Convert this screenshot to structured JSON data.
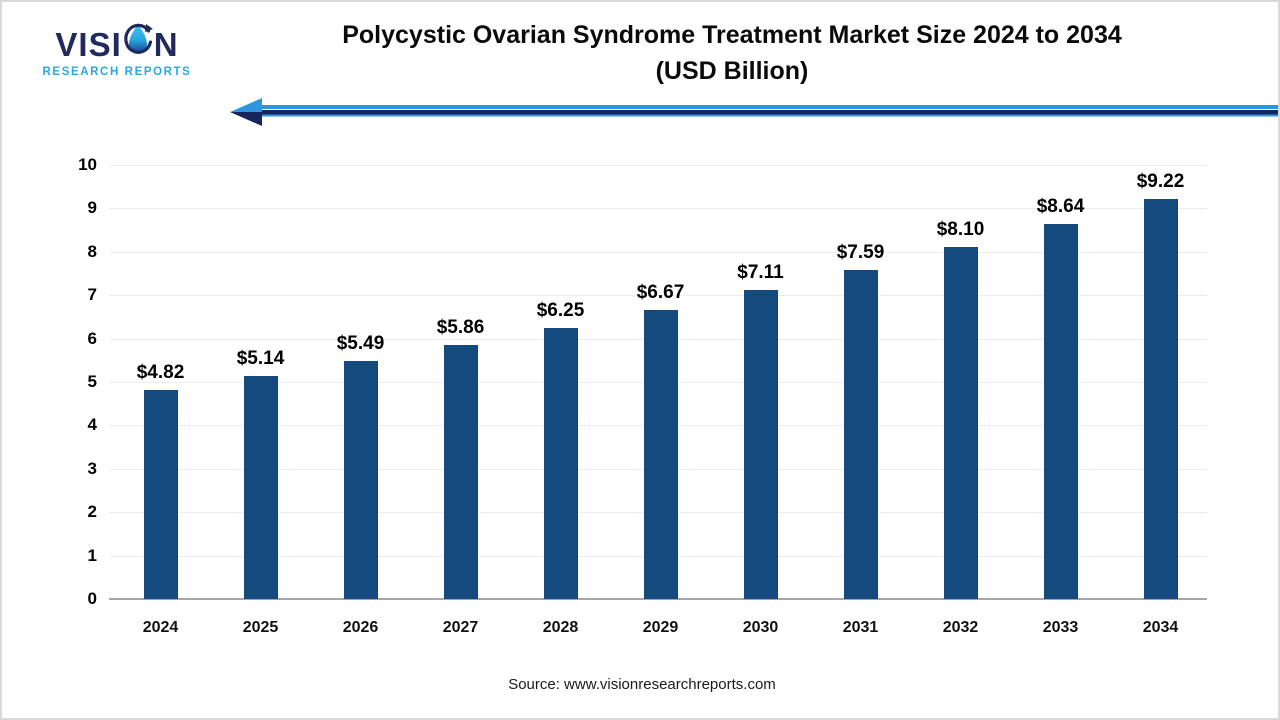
{
  "logo": {
    "brand_prefix": "VISI",
    "brand_suffix": "N",
    "subtitle": "RESEARCH REPORTS"
  },
  "header": {
    "title_line1": "Polycystic Ovarian Syndrome Treatment Market Size 2024 to 2034",
    "title_line2": "(USD Billion)"
  },
  "chart_data": {
    "type": "bar",
    "title": "Polycystic Ovarian Syndrome Treatment Market Size 2024 to 2034 (USD Billion)",
    "categories": [
      "2024",
      "2025",
      "2026",
      "2027",
      "2028",
      "2029",
      "2030",
      "2031",
      "2032",
      "2033",
      "2034"
    ],
    "values": [
      4.82,
      5.14,
      5.49,
      5.86,
      6.25,
      6.67,
      7.11,
      7.59,
      8.1,
      8.64,
      9.22
    ],
    "value_labels": [
      "$4.82",
      "$5.14",
      "$5.49",
      "$5.86",
      "$6.25",
      "$6.67",
      "$7.11",
      "$7.59",
      "$8.10",
      "$8.64",
      "$9.22"
    ],
    "xlabel": "",
    "ylabel": "",
    "y_ticks": [
      0,
      1,
      2,
      3,
      4,
      5,
      6,
      7,
      8,
      9,
      10
    ],
    "ylim": [
      0,
      10
    ],
    "grid": "horizontal",
    "legend": "none",
    "bar_color": "#144a7d"
  },
  "footer": {
    "source": "Source: www.visionresearchreports.com"
  },
  "colors": {
    "bar": "#144a7d",
    "gridline": "#ececec",
    "axis_line": "#a6a6a6",
    "arrow_light_blue": "#2d96e0",
    "arrow_navy": "#16265c",
    "logo_navy": "#202a5c",
    "logo_light_blue": "#29a8e0",
    "border": "#d9d9d9"
  },
  "icons": {
    "logo_droplet": "droplet-swoosh-icon",
    "divider": "left-arrow-icon"
  }
}
